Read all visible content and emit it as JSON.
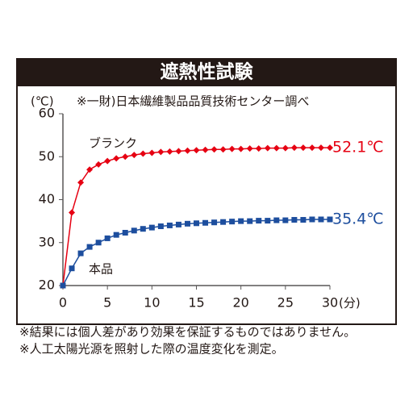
{
  "chart_data": {
    "type": "line",
    "title": "遮熱性試験",
    "subtitle": "※一財)日本繊維製品品質技術センター調べ",
    "ylabel": "(℃)",
    "xlabel": "(分)",
    "x": [
      0,
      1,
      2,
      3,
      4,
      5,
      6,
      7,
      8,
      9,
      10,
      11,
      12,
      13,
      14,
      15,
      16,
      17,
      18,
      19,
      20,
      21,
      22,
      23,
      24,
      25,
      26,
      27,
      28,
      29,
      30
    ],
    "series": [
      {
        "name": "ブランク",
        "color": "#e60012",
        "marker": "diamond",
        "label": "52.1℃",
        "values": [
          20,
          37,
          44,
          47,
          48.2,
          49,
          49.6,
          50,
          50.4,
          50.7,
          50.9,
          51.1,
          51.2,
          51.3,
          51.4,
          51.5,
          51.6,
          51.7,
          51.7,
          51.8,
          51.8,
          51.9,
          51.9,
          52.0,
          52.0,
          52.0,
          52.1,
          52.1,
          52.1,
          52.1,
          52.1
        ]
      },
      {
        "name": "本品",
        "color": "#1d4e9e",
        "marker": "square",
        "label": "35.4℃",
        "values": [
          20,
          24,
          27.5,
          29,
          30,
          31,
          31.8,
          32.3,
          32.8,
          33.2,
          33.5,
          33.8,
          34,
          34.2,
          34.4,
          34.5,
          34.6,
          34.7,
          34.8,
          34.9,
          35,
          35,
          35.1,
          35.1,
          35.2,
          35.2,
          35.3,
          35.3,
          35.4,
          35.4,
          35.4
        ]
      }
    ],
    "xlim": [
      0,
      30
    ],
    "xticks": [
      0,
      5,
      10,
      15,
      20,
      25,
      30
    ],
    "ylim": [
      20,
      60
    ],
    "yticks": [
      20,
      30,
      40,
      50,
      60
    ]
  },
  "footnotes": [
    "※結果には個人差があり効果を保証するものではありません。",
    "※人工太陽光源を照射した際の温度変化を測定。"
  ]
}
